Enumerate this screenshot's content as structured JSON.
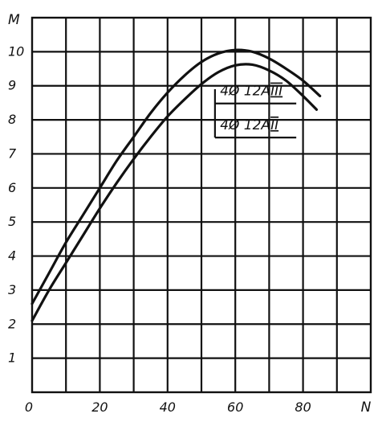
{
  "chart_data": {
    "type": "line",
    "xlabel": "N",
    "ylabel": "M",
    "xlim": [
      0,
      100
    ],
    "ylim": [
      0,
      11
    ],
    "x_ticks": [
      "0",
      "20",
      "40",
      "60",
      "80"
    ],
    "y_ticks": [
      "1",
      "2",
      "3",
      "4",
      "5",
      "6",
      "7",
      "8",
      "9",
      "10"
    ],
    "grid": true,
    "series": [
      {
        "name": "4Ø 12A III",
        "legend_main": "4Ø 12A",
        "legend_grade": "III",
        "x": [
          0,
          5,
          10,
          15,
          20,
          25,
          30,
          35,
          40,
          45,
          50,
          55,
          60,
          65,
          70,
          75,
          80,
          85
        ],
        "y": [
          2.6,
          3.5,
          4.4,
          5.2,
          6.0,
          6.8,
          7.5,
          8.2,
          8.8,
          9.3,
          9.7,
          9.95,
          10.05,
          10.0,
          9.8,
          9.5,
          9.15,
          8.7
        ]
      },
      {
        "name": "4Ø 12A II",
        "legend_main": "4Ø 12A",
        "legend_grade": "II",
        "x": [
          0,
          5,
          10,
          15,
          20,
          25,
          30,
          35,
          40,
          45,
          50,
          55,
          60,
          65,
          70,
          75,
          80,
          84
        ],
        "y": [
          2.1,
          3.0,
          3.8,
          4.6,
          5.4,
          6.15,
          6.85,
          7.5,
          8.1,
          8.6,
          9.05,
          9.4,
          9.6,
          9.62,
          9.45,
          9.15,
          8.7,
          8.3
        ]
      }
    ]
  }
}
